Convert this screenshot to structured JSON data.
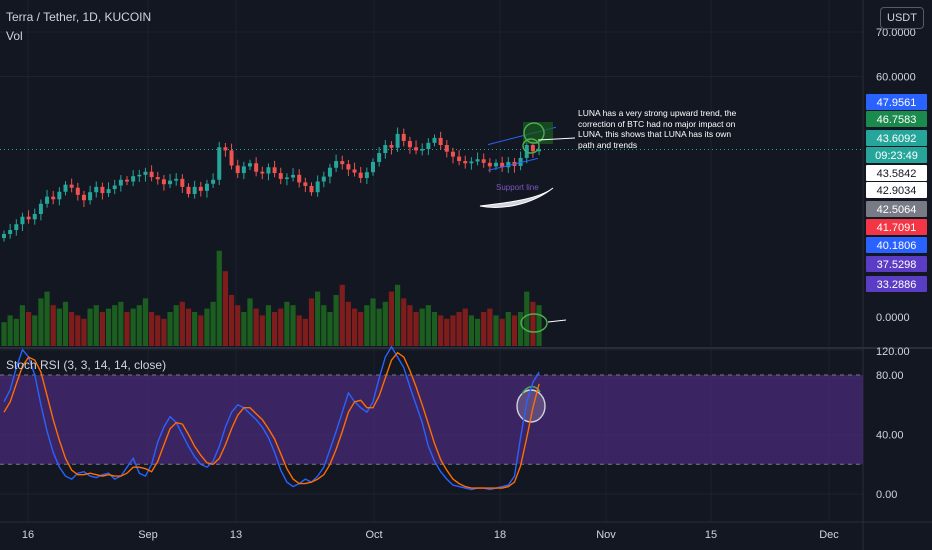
{
  "header": {
    "symbol_title": "Terra / Tether, 1D, KUCOIN",
    "volume_label": "Vol",
    "stoch_label": "Stoch RSI (3, 3, 14, 14, close)",
    "currency_button": "USDT"
  },
  "annotation": {
    "note": "LUNA has a very strong upward trend, the correction of BTC had no major impact on LUNA, this shows that LUNA has its own path and trends",
    "support_line_label": "Support line"
  },
  "colors": {
    "background": "#131722",
    "up": "#26a69a",
    "down": "#ef5350",
    "vol_up": "#1b5e20",
    "vol_down": "#7f1d1d",
    "stoch_k": "#2962ff",
    "stoch_d": "#ff6d00",
    "stoch_band": "#4a2a78",
    "channel": "#2962ff",
    "support": "#7e57c2"
  },
  "chart_data": [
    {
      "type": "candlestick",
      "title": "Terra / Tether, 1D, KUCOIN",
      "y_ticks": [
        "70.0000",
        "60.0000",
        "0.0000"
      ],
      "x_ticks": [
        "16",
        "Sep",
        "13",
        "Oct",
        "18",
        "Nov",
        "15",
        "Dec"
      ],
      "price_tags": [
        {
          "text": "47.9561",
          "color": "#2962ff"
        },
        {
          "text": "46.7583",
          "color": "#1b8a4d"
        },
        {
          "text": "43.6092",
          "color": "#26a69a"
        },
        {
          "text": "09:23:49",
          "color": "#26a69a"
        },
        {
          "text": "43.5842",
          "color": "#ffffff"
        },
        {
          "text": "42.9034",
          "color": "#ffffff"
        },
        {
          "text": "42.5064",
          "color": "#787b86"
        },
        {
          "text": "41.7091",
          "color": "#f23645"
        },
        {
          "text": "40.1806",
          "color": "#2962ff"
        },
        {
          "text": "37.5298",
          "color": "#5b3cc4"
        },
        {
          "text": "33.2886",
          "color": "#5b3cc4"
        }
      ],
      "close": [
        24.6,
        25.5,
        26.8,
        28.5,
        27.9,
        29.1,
        31.4,
        33.0,
        32.4,
        34.1,
        35.7,
        35.0,
        33.4,
        32.2,
        34.0,
        35.2,
        33.8,
        34.7,
        35.5,
        36.8,
        36.4,
        37.6,
        37.9,
        38.6,
        37.4,
        36.9,
        35.8,
        36.6,
        37.0,
        35.2,
        33.6,
        35.2,
        34.3,
        35.9,
        36.8,
        44.1,
        43.4,
        40.0,
        38.3,
        39.8,
        40.5,
        38.6,
        38.2,
        39.6,
        38.3,
        37.0,
        37.3,
        37.9,
        36.2,
        35.4,
        34.0,
        36.4,
        37.5,
        39.5,
        41.0,
        40.3,
        39.1,
        38.4,
        37.2,
        38.5,
        40.8,
        42.8,
        44.6,
        44.0,
        47.1,
        45.5,
        44.1,
        43.4,
        43.7,
        45.1,
        46.2,
        44.6,
        43.1,
        42.0,
        41.0,
        40.5,
        40.9,
        41.4,
        40.6,
        39.8,
        40.6,
        39.6,
        40.8,
        39.9,
        41.7,
        44.6,
        43.2,
        43.6
      ],
      "volume": [
        7,
        9,
        8,
        12,
        10,
        9,
        14,
        16,
        12,
        11,
        13,
        10,
        9,
        8,
        11,
        12,
        10,
        11,
        12,
        13,
        10,
        11,
        12,
        14,
        10,
        9,
        8,
        10,
        12,
        13,
        11,
        10,
        9,
        11,
        13,
        28,
        22,
        15,
        12,
        10,
        14,
        11,
        9,
        12,
        10,
        11,
        13,
        12,
        9,
        8,
        14,
        16,
        12,
        10,
        15,
        18,
        13,
        11,
        10,
        12,
        14,
        11,
        13,
        16,
        18,
        14,
        12,
        10,
        11,
        12,
        10,
        9,
        8,
        9,
        10,
        11,
        9,
        8,
        10,
        11,
        9,
        8,
        10,
        9,
        10,
        16,
        13,
        12
      ],
      "stoch_rsi": {
        "y_ticks": [
          "120.00",
          "80.00",
          "40.00",
          "0.00"
        ],
        "band": [
          20,
          80
        ],
        "k": [
          62,
          70,
          85,
          97,
          92,
          80,
          60,
          42,
          28,
          18,
          12,
          10,
          14,
          15,
          12,
          11,
          13,
          14,
          10,
          12,
          18,
          24,
          14,
          12,
          20,
          35,
          45,
          52,
          48,
          40,
          32,
          25,
          20,
          18,
          22,
          32,
          45,
          55,
          60,
          58,
          54,
          50,
          45,
          38,
          28,
          16,
          8,
          5,
          7,
          10,
          8,
          12,
          18,
          30,
          42,
          55,
          68,
          62,
          58,
          55,
          62,
          78,
          92,
          99,
          92,
          85,
          72,
          60,
          48,
          32,
          22,
          15,
          10,
          6,
          5,
          4,
          3,
          4,
          4,
          3,
          4,
          5,
          6,
          12,
          38,
          62,
          75,
          82
        ],
        "d": [
          55,
          62,
          74,
          86,
          92,
          90,
          82,
          66,
          50,
          36,
          24,
          16,
          13,
          13,
          14,
          13,
          12,
          13,
          12,
          12,
          14,
          18,
          18,
          17,
          15,
          22,
          33,
          44,
          48,
          47,
          40,
          32,
          26,
          21,
          20,
          24,
          33,
          44,
          53,
          58,
          58,
          54,
          50,
          44,
          37,
          27,
          17,
          10,
          7,
          7,
          8,
          10,
          13,
          20,
          30,
          42,
          55,
          62,
          63,
          58,
          58,
          66,
          78,
          90,
          95,
          92,
          83,
          72,
          60,
          47,
          34,
          23,
          16,
          10,
          7,
          5,
          4,
          4,
          4,
          4,
          4,
          4,
          5,
          8,
          19,
          38,
          58,
          74
        ]
      }
    }
  ]
}
